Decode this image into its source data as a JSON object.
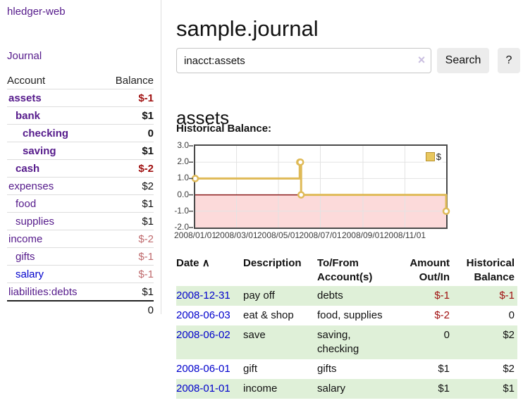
{
  "app": {
    "brand": "hledger-web",
    "nav_journal": "Journal"
  },
  "sidebar": {
    "header": {
      "account": "Account",
      "balance": "Balance"
    },
    "accounts": [
      {
        "name": "assets",
        "balance": "$-1",
        "indent": 1,
        "bold": true,
        "neg": "strong"
      },
      {
        "name": "bank",
        "balance": "$1",
        "indent": 2,
        "bold": true,
        "neg": "none"
      },
      {
        "name": "checking",
        "balance": "0",
        "indent": 3,
        "bold": true,
        "neg": "none"
      },
      {
        "name": "saving",
        "balance": "$1",
        "indent": 3,
        "bold": true,
        "neg": "none"
      },
      {
        "name": "cash",
        "balance": "$-2",
        "indent": 2,
        "bold": true,
        "neg": "strong"
      },
      {
        "name": "expenses",
        "balance": "$2",
        "indent": 1,
        "bold": false,
        "neg": "none"
      },
      {
        "name": "food",
        "balance": "$1",
        "indent": 2,
        "bold": false,
        "neg": "none"
      },
      {
        "name": "supplies",
        "balance": "$1",
        "indent": 2,
        "bold": false,
        "neg": "none"
      },
      {
        "name": "income",
        "balance": "$-2",
        "indent": 1,
        "bold": false,
        "neg": "soft"
      },
      {
        "name": "gifts",
        "balance": "$-1",
        "indent": 2,
        "bold": false,
        "neg": "soft"
      },
      {
        "name": "salary",
        "balance": "$-1",
        "indent": 2,
        "bold": false,
        "neg": "soft",
        "link": "blue"
      },
      {
        "name": "liabilities:debts",
        "balance": "$1",
        "indent": 1,
        "bold": false,
        "neg": "none"
      }
    ],
    "total": "0"
  },
  "header": {
    "title": "sample.journal"
  },
  "search": {
    "value": "inacct:assets",
    "clear_icon": "×",
    "button_label": "Search",
    "help_label": "?"
  },
  "account_page": {
    "title": "assets",
    "chart_label": "Historical Balance:"
  },
  "chart_data": {
    "type": "line",
    "title": "Historical Balance",
    "step": true,
    "series": [
      {
        "name": "$",
        "points": [
          [
            "2008-01-01",
            1
          ],
          [
            "2008-06-01",
            2
          ],
          [
            "2008-06-02",
            2
          ],
          [
            "2008-06-03",
            0
          ],
          [
            "2008-12-31",
            -1
          ]
        ]
      }
    ],
    "x_ticks": [
      "2008/01/01",
      "2008/03/01",
      "2008/05/01",
      "2008/07/01",
      "2008/09/01",
      "2008/11/01"
    ],
    "y_ticks": [
      "3.0",
      "2.0",
      "1.0",
      "0.0",
      "-1.0",
      "-2.0"
    ],
    "ylim": [
      -2,
      3
    ],
    "xlim": [
      "2008-01-01",
      "2008-12-31"
    ],
    "grid": true,
    "legend_position": "top-right",
    "colors": {
      "line": "#dfba57",
      "marker_fill": "#ffffff",
      "negative_fill": "#fcdada",
      "zero_line": "#8b1a1a",
      "grid": "#e3e3e3",
      "legend_swatch": "#e8c75f"
    }
  },
  "register": {
    "columns": {
      "date": "Date",
      "sort_indicator": "∧",
      "description": "Description",
      "accounts_line1": "To/From",
      "accounts_line2": "Account(s)",
      "amount_line1": "Amount",
      "amount_line2": "Out/In",
      "balance_line1": "Historical",
      "balance_line2": "Balance"
    },
    "rows": [
      {
        "date": "2008-12-31",
        "description": "pay off",
        "accounts": "debts",
        "amount": "$-1",
        "amount_neg": true,
        "balance": "$-1",
        "balance_neg": true
      },
      {
        "date": "2008-06-03",
        "description": "eat & shop",
        "accounts": "food, supplies",
        "amount": "$-2",
        "amount_neg": true,
        "balance": "0",
        "balance_neg": false
      },
      {
        "date": "2008-06-02",
        "description": "save",
        "accounts": "saving, checking",
        "amount": "0",
        "amount_neg": false,
        "balance": "$2",
        "balance_neg": false
      },
      {
        "date": "2008-06-01",
        "description": "gift",
        "accounts": "gifts",
        "amount": "$1",
        "amount_neg": false,
        "balance": "$2",
        "balance_neg": false
      },
      {
        "date": "2008-01-01",
        "description": "income",
        "accounts": "salary",
        "amount": "$1",
        "amount_neg": false,
        "balance": "$1",
        "balance_neg": false
      }
    ]
  }
}
